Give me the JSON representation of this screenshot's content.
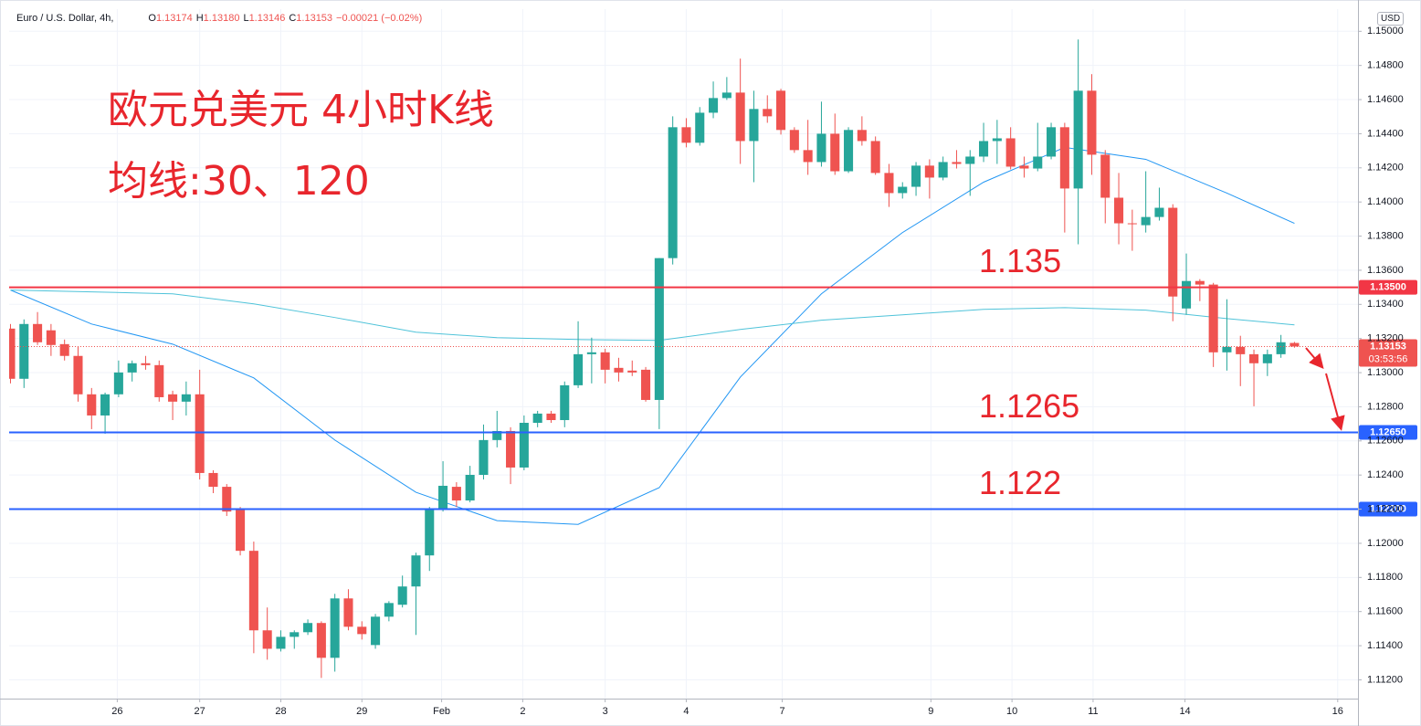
{
  "chart_data": {
    "type": "candlestick",
    "symbol": "Euro / U.S. Dollar, 4h,",
    "quote": [
      {
        "key": "O",
        "value": "1.13174"
      },
      {
        "key": "H",
        "value": "1.13180"
      },
      {
        "key": "L",
        "value": "1.13146"
      },
      {
        "key": "C",
        "value": "1.13153"
      }
    ],
    "change": "−0.00021 (−0.02%)",
    "title": "欧元兑美元 4小时K线",
    "subtitle": "均线:30、120",
    "currency": "USD",
    "up_color": "#26a69a",
    "down_color": "#ef5350",
    "grid": true,
    "xlim": [
      -0.1,
      99.7
    ],
    "ylim": [
      1.1109,
      1.1513
    ],
    "xticks": [
      {
        "value": 7.9,
        "label": "26"
      },
      {
        "value": 14,
        "label": "27"
      },
      {
        "value": 20,
        "label": "28"
      },
      {
        "value": 26,
        "label": "29"
      },
      {
        "value": 31.9,
        "label": "Feb"
      },
      {
        "value": 37.9,
        "label": "2"
      },
      {
        "value": 44,
        "label": "3"
      },
      {
        "value": 50,
        "label": "4"
      },
      {
        "value": 57.1,
        "label": "7"
      },
      {
        "value": 68.1,
        "label": "9"
      },
      {
        "value": 74.1,
        "label": "10"
      },
      {
        "value": 80.1,
        "label": "11"
      },
      {
        "value": 86.9,
        "label": "14"
      },
      {
        "value": 98.2,
        "label": "16"
      }
    ],
    "yticks": [
      {
        "value": 1.112,
        "label": "1.11200"
      },
      {
        "value": 1.114,
        "label": "1.11400"
      },
      {
        "value": 1.116,
        "label": "1.11600"
      },
      {
        "value": 1.118,
        "label": "1.11800"
      },
      {
        "value": 1.12,
        "label": "1.12000"
      },
      {
        "value": 1.122,
        "label": "1.12200"
      },
      {
        "value": 1.124,
        "label": "1.12400"
      },
      {
        "value": 1.126,
        "label": "1.12600"
      },
      {
        "value": 1.128,
        "label": "1.12800"
      },
      {
        "value": 1.13,
        "label": "1.13000"
      },
      {
        "value": 1.132,
        "label": "1.13200"
      },
      {
        "value": 1.134,
        "label": "1.13400"
      },
      {
        "value": 1.136,
        "label": "1.13600"
      },
      {
        "value": 1.138,
        "label": "1.13800"
      },
      {
        "value": 1.14,
        "label": "1.14000"
      },
      {
        "value": 1.142,
        "label": "1.14200"
      },
      {
        "value": 1.144,
        "label": "1.14400"
      },
      {
        "value": 1.146,
        "label": "1.14600"
      },
      {
        "value": 1.148,
        "label": "1.14800"
      },
      {
        "value": 1.15,
        "label": "1.15000"
      }
    ],
    "open": [
      1.13258,
      1.12964,
      1.13285,
      1.13248,
      1.13167,
      1.13098,
      1.12873,
      1.12749,
      1.12873,
      1.13001,
      1.13055,
      1.13044,
      1.12873,
      1.1283,
      1.12873,
      1.12412,
      1.12331,
      1.12197,
      1.11956,
      1.1149,
      1.11382,
      1.11452,
      1.11479,
      1.11533,
      1.11329,
      1.11677,
      1.11511,
      1.11404,
      1.1157,
      1.1164,
      1.11747,
      1.11929,
      1.12197,
      1.12331,
      1.12251,
      1.12401,
      1.12605,
      1.12658,
      1.12444,
      1.12706,
      1.1276,
      1.12722,
      1.12926,
      1.13108,
      1.13119,
      1.13028,
      1.13012,
      1.13017,
      1.1284,
      1.13671,
      1.14438,
      1.14347,
      1.14523,
      1.14609,
      1.14641,
      1.14357,
      1.14545,
      1.14652,
      1.14422,
      1.14304,
      1.14234,
      1.144,
      1.1418,
      1.14422,
      1.14357,
      1.1417,
      1.14052,
      1.14089,
      1.14213,
      1.14143,
      1.14234,
      1.14223,
      1.14266,
      1.14357,
      1.14373,
      1.14213,
      1.14196,
      1.14266,
      1.14438,
      1.14079,
      1.14652,
      1.14277,
      1.14025,
      1.13875,
      1.13864,
      1.13912,
      1.13966,
      1.13376,
      1.13537,
      1.13516,
      1.13119,
      1.13151,
      1.13108,
      1.13055,
      1.13108,
      1.13174
    ],
    "high": [
      1.13285,
      1.13312,
      1.13355,
      1.13285,
      1.13194,
      1.13151,
      1.1291,
      1.12883,
      1.13071,
      1.13071,
      1.13098,
      1.13071,
      1.12894,
      1.12948,
      1.13017,
      1.12428,
      1.12347,
      1.12213,
      1.1201,
      1.11624,
      1.1149,
      1.1149,
      1.11554,
      1.11543,
      1.11704,
      1.11731,
      1.11543,
      1.11586,
      1.11661,
      1.11811,
      1.11945,
      1.12213,
      1.12481,
      1.12358,
      1.12454,
      1.12696,
      1.12776,
      1.1268,
      1.12749,
      1.12776,
      1.12776,
      1.12948,
      1.13301,
      1.13205,
      1.1314,
      1.13087,
      1.13071,
      1.13033,
      1.13671,
      1.14502,
      1.14491,
      1.14556,
      1.14706,
      1.14732,
      1.1484,
      1.14652,
      1.14625,
      1.14663,
      1.14438,
      1.14481,
      1.14588,
      1.14518,
      1.14438,
      1.14502,
      1.14384,
      1.14223,
      1.14116,
      1.14234,
      1.1425,
      1.14266,
      1.14304,
      1.14304,
      1.14464,
      1.14481,
      1.14438,
      1.14266,
      1.14464,
      1.14464,
      1.14464,
      1.14952,
      1.14749,
      1.14304,
      1.1417,
      1.13955,
      1.1418,
      1.14084,
      1.13987,
      1.13698,
      1.13548,
      1.13526,
      1.1343,
      1.13216,
      1.13135,
      1.13135,
      1.13221,
      1.1318
    ],
    "low": [
      1.12937,
      1.1291,
      1.13162,
      1.13098,
      1.13071,
      1.1283,
      1.12669,
      1.12642,
      1.12856,
      1.12948,
      1.13017,
      1.1283,
      1.12722,
      1.12749,
      1.12374,
      1.12294,
      1.1216,
      1.11929,
      1.11356,
      1.11318,
      1.11366,
      1.11382,
      1.11463,
      1.11211,
      1.11248,
      1.1149,
      1.11436,
      1.11382,
      1.11543,
      1.11624,
      1.11463,
      1.11838,
      1.12186,
      1.12213,
      1.1224,
      1.12374,
      1.12562,
      1.12347,
      1.12428,
      1.1268,
      1.12706,
      1.1268,
      1.1291,
      1.12937,
      1.12937,
      1.12948,
      1.1298,
      1.1283,
      1.12669,
      1.13634,
      1.1432,
      1.1433,
      1.14491,
      1.14598,
      1.14223,
      1.14116,
      1.14464,
      1.14395,
      1.14288,
      1.14159,
      1.14207,
      1.14159,
      1.1417,
      1.1433,
      1.14159,
      1.13971,
      1.1402,
      1.14036,
      1.1402,
      1.14127,
      1.14196,
      1.14036,
      1.14234,
      1.14223,
      1.14191,
      1.14143,
      1.1418,
      1.1425,
      1.13821,
      1.13752,
      1.14159,
      1.13875,
      1.13752,
      1.13714,
      1.13821,
      1.13891,
      1.13301,
      1.13339,
      1.13419,
      1.13033,
      1.13012,
      1.12921,
      1.12803,
      1.1298,
      1.13087,
      1.13146
    ],
    "close": [
      1.12964,
      1.13285,
      1.13178,
      1.13162,
      1.13098,
      1.12873,
      1.12749,
      1.12873,
      1.13001,
      1.13055,
      1.13044,
      1.12856,
      1.1283,
      1.12873,
      1.12412,
      1.12331,
      1.12186,
      1.11956,
      1.1149,
      1.11382,
      1.11452,
      1.11479,
      1.11533,
      1.11329,
      1.11677,
      1.11511,
      1.11468,
      1.1157,
      1.1165,
      1.11747,
      1.11929,
      1.12197,
      1.12337,
      1.12251,
      1.12401,
      1.12605,
      1.12658,
      1.12444,
      1.12706,
      1.1276,
      1.12722,
      1.12926,
      1.13108,
      1.13119,
      1.13017,
      1.13001,
      1.13001,
      1.1284,
      1.13671,
      1.14438,
      1.14347,
      1.14523,
      1.14609,
      1.14641,
      1.14357,
      1.14545,
      1.14502,
      1.14422,
      1.14304,
      1.14234,
      1.144,
      1.1418,
      1.14422,
      1.14357,
      1.1417,
      1.14052,
      1.14089,
      1.14213,
      1.14143,
      1.14234,
      1.14223,
      1.14266,
      1.14357,
      1.14373,
      1.14207,
      1.14196,
      1.14266,
      1.14438,
      1.14079,
      1.14652,
      1.14277,
      1.14025,
      1.13875,
      1.1387,
      1.13912,
      1.13966,
      1.13446,
      1.13537,
      1.13516,
      1.13119,
      1.13151,
      1.13108,
      1.13055,
      1.13108,
      1.13178,
      1.13153
    ],
    "lines": [
      {
        "color": "#2196f3",
        "x": [
          0,
          6,
          12,
          18,
          24,
          30,
          36,
          42,
          48,
          54,
          60,
          66,
          72,
          78,
          84,
          90,
          95
        ],
        "values": [
          1.13484,
          1.13285,
          1.13167,
          1.12969,
          1.12605,
          1.12299,
          1.12133,
          1.12111,
          1.12326,
          1.12974,
          1.13462,
          1.13821,
          1.14116,
          1.1432,
          1.1425,
          1.14052,
          1.13875
        ]
      },
      {
        "color": "#4fc3d9",
        "x": [
          0,
          6,
          12,
          18,
          24,
          30,
          36,
          42,
          48,
          54,
          60,
          66,
          72,
          78,
          84,
          90,
          95
        ],
        "values": [
          1.13484,
          1.13473,
          1.13462,
          1.13403,
          1.13323,
          1.13237,
          1.13205,
          1.13194,
          1.13189,
          1.13253,
          1.13307,
          1.13339,
          1.13371,
          1.13381,
          1.13366,
          1.13317,
          1.1328
        ]
      }
    ],
    "hlines": [
      {
        "value": 1.135,
        "label": "1.13500",
        "note": "1.135",
        "color": "#f23645"
      },
      {
        "value": 1.1265,
        "label": "1.12650",
        "note": "1.1265",
        "color": "#2962ff"
      },
      {
        "value": 1.122,
        "label": "1.12200",
        "note": "1.122",
        "color": "#2962ff"
      }
    ],
    "last_price": 1.13153,
    "countdown": "03:53:56",
    "last_color": "#ef5350"
  }
}
